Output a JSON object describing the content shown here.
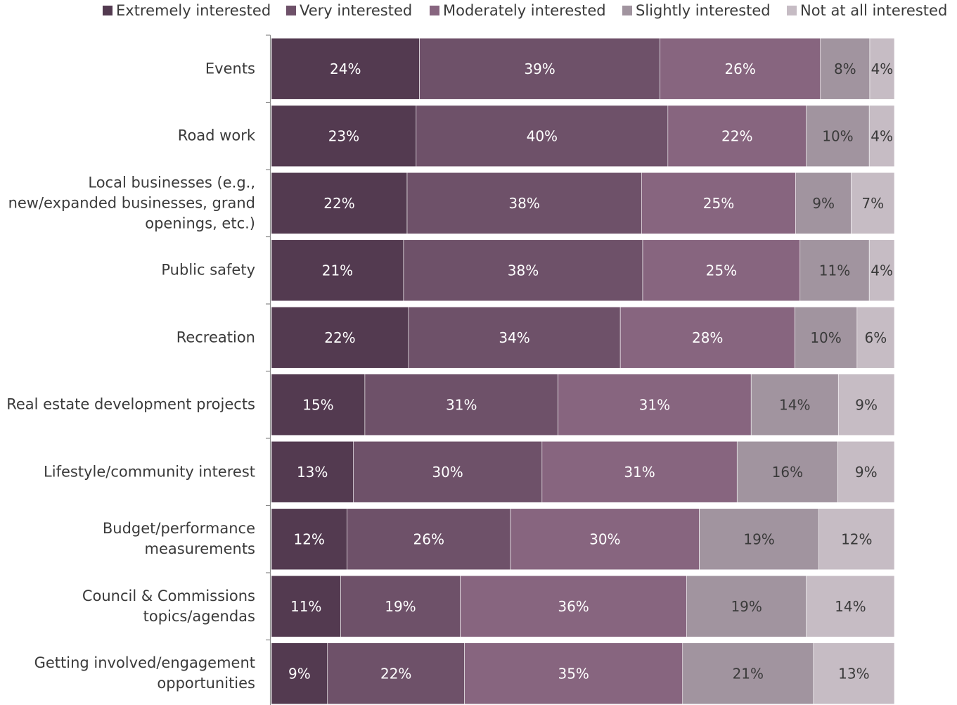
{
  "chart_data": {
    "type": "bar",
    "orientation": "horizontal",
    "stacked": true,
    "title": "",
    "xlabel": "",
    "ylabel": "",
    "xlim": [
      0,
      100
    ],
    "legend_position": "top",
    "grid": false,
    "categories": [
      "Events",
      "Road work",
      "Local businesses (e.g., new/expanded businesses, grand openings, etc.)",
      "Public safety",
      "Recreation",
      "Real estate development projects",
      "Lifestyle/community interest",
      "Budget/performance measurements",
      "Council & Commissions topics/agendas",
      "Getting involved/engagement opportunities"
    ],
    "series": [
      {
        "name": "Extremely interested",
        "color": "#533a50",
        "label_color": "#ffffff",
        "values": [
          24,
          23,
          22,
          21,
          22,
          15,
          13,
          12,
          11,
          9
        ],
        "labels": [
          "24%",
          "23%",
          "22%",
          "21%",
          "22%",
          "15%",
          "13%",
          "12%",
          "11%",
          "9%"
        ]
      },
      {
        "name": "Very interested",
        "color": "#6e5169",
        "label_color": "#ffffff",
        "values": [
          39,
          40,
          38,
          38,
          34,
          31,
          30,
          26,
          19,
          22
        ],
        "labels": [
          "39%",
          "40%",
          "38%",
          "38%",
          "34%",
          "31%",
          "30%",
          "26%",
          "19%",
          "22%"
        ]
      },
      {
        "name": "Moderately interested",
        "color": "#87657f",
        "label_color": "#ffffff",
        "values": [
          26,
          22,
          25,
          25,
          28,
          31,
          31,
          30,
          36,
          35
        ],
        "labels": [
          "26%",
          "22%",
          "25%",
          "25%",
          "28%",
          "31%",
          "31%",
          "30%",
          "36%",
          "35%"
        ]
      },
      {
        "name": "Slightly interested",
        "color": "#a1949f",
        "label_color": "#3a3a3a",
        "values": [
          8,
          10,
          9,
          11,
          10,
          14,
          16,
          19,
          19,
          21
        ],
        "labels": [
          "8%",
          "10%",
          "9%",
          "11%",
          "10%",
          "14%",
          "16%",
          "19%",
          "19%",
          "21%"
        ]
      },
      {
        "name": "Not at all interested",
        "color": "#c6bcc4",
        "label_color": "#3a3a3a",
        "values": [
          4,
          4,
          7,
          4,
          6,
          9,
          9,
          12,
          14,
          13
        ],
        "labels": [
          "4%",
          "4%",
          "7%",
          "4%",
          "6%",
          "9%",
          "9%",
          "12%",
          "14%",
          "13%"
        ]
      }
    ]
  }
}
